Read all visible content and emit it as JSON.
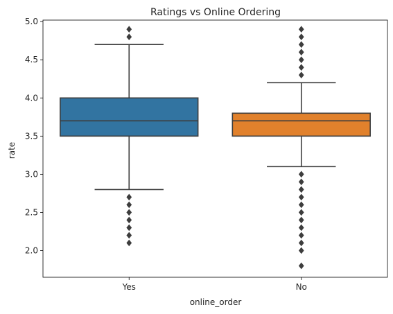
{
  "chart_data": {
    "type": "box",
    "title": "Ratings vs Online Ordering",
    "xlabel": "online_order",
    "ylabel": "rate",
    "categories": [
      "Yes",
      "No"
    ],
    "ylim": [
      1.65,
      5.02
    ],
    "yticks": [
      "2.0",
      "2.5",
      "3.0",
      "3.5",
      "4.0",
      "4.5",
      "5.0"
    ],
    "grid": false,
    "edge_color": "#3d3d3d",
    "boxes": [
      {
        "category": "Yes",
        "color": "#3274a1",
        "q1": 3.5,
        "median": 3.7,
        "q3": 4.0,
        "whisker_low": 2.8,
        "whisker_high": 4.7,
        "outliers": [
          2.1,
          2.2,
          2.3,
          2.4,
          2.5,
          2.6,
          2.7,
          4.8,
          4.9
        ]
      },
      {
        "category": "No",
        "color": "#e1812c",
        "q1": 3.5,
        "median": 3.7,
        "q3": 3.8,
        "whisker_low": 3.1,
        "whisker_high": 4.2,
        "outliers": [
          1.8,
          2.0,
          2.1,
          2.2,
          2.3,
          2.4,
          2.5,
          2.6,
          2.7,
          2.8,
          2.9,
          3.0,
          4.3,
          4.4,
          4.5,
          4.6,
          4.7,
          4.8,
          4.9
        ]
      }
    ]
  }
}
